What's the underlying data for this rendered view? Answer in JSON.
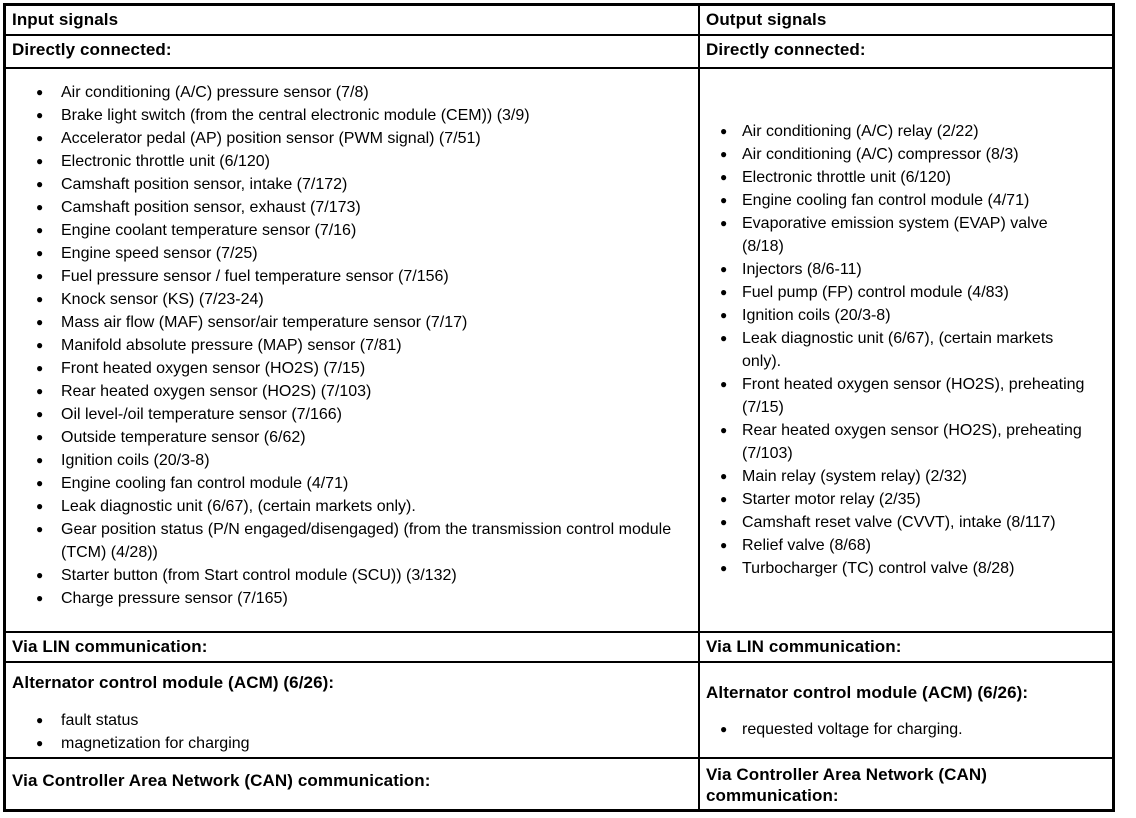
{
  "document": {
    "colors": {
      "background": "#ffffff",
      "border": "#000000",
      "text": "#000000"
    },
    "input_column": {
      "header": "Input signals",
      "directly_connected_label": "Directly connected:",
      "directly_connected_items": [
        "Air conditioning (A/C) pressure sensor (7/8)",
        "Brake light switch (from the central electronic module (CEM)) (3/9)",
        "Accelerator pedal (AP) position sensor (PWM signal) (7/51)",
        "Electronic throttle unit (6/120)",
        "Camshaft position sensor, intake (7/172)",
        "Camshaft position sensor, exhaust (7/173)",
        "Engine coolant temperature sensor (7/16)",
        "Engine speed sensor (7/25)",
        "Fuel pressure sensor / fuel temperature sensor (7/156)",
        "Knock sensor (KS) (7/23-24)",
        "Mass air flow (MAF) sensor/air temperature sensor (7/17)",
        "Manifold absolute pressure (MAP) sensor (7/81)",
        "Front heated oxygen sensor (HO2S) (7/15)",
        "Rear heated oxygen sensor (HO2S) (7/103)",
        "Oil level-/oil temperature sensor (7/166)",
        "Outside temperature sensor (6/62)",
        "Ignition coils (20/3-8)",
        "Engine cooling fan control module (4/71)",
        "Leak diagnostic unit (6/67), (certain markets only).",
        "Gear position status (P/N engaged/disengaged) (from the transmission control module (TCM) (4/28))",
        "Starter button (from Start control module (SCU)) (3/132)",
        "Charge pressure sensor (7/165)"
      ],
      "via_lin_label": "Via LIN communication:",
      "acm_label": "Alternator control module (ACM) (6/26):",
      "acm_items": [
        "fault status",
        "magnetization for charging"
      ],
      "via_can_label": "Via Controller Area Network (CAN) communication:"
    },
    "output_column": {
      "header": "Output signals",
      "directly_connected_label": "Directly connected:",
      "directly_connected_items": [
        "Air conditioning (A/C) relay (2/22)",
        "Air conditioning (A/C) compressor (8/3)",
        "Electronic throttle unit (6/120)",
        "Engine cooling fan control module (4/71)",
        "Evaporative emission system (EVAP) valve (8/18)",
        "Injectors (8/6-11)",
        "Fuel pump (FP) control module (4/83)",
        "Ignition coils (20/3-8)",
        "Leak diagnostic unit (6/67), (certain markets only).",
        "Front heated oxygen sensor (HO2S), preheating (7/15)",
        "Rear heated oxygen sensor (HO2S), preheating (7/103)",
        "Main relay (system relay) (2/32)",
        "Starter motor relay (2/35)",
        "Camshaft reset valve (CVVT), intake (8/117)",
        "Relief valve (8/68)",
        "Turbocharger (TC) control valve (8/28)"
      ],
      "via_lin_label": "Via LIN communication:",
      "acm_label": "Alternator control module (ACM) (6/26):",
      "acm_items": [
        "requested voltage for charging."
      ],
      "via_can_label": "Via Controller Area Network (CAN) communication:"
    }
  }
}
